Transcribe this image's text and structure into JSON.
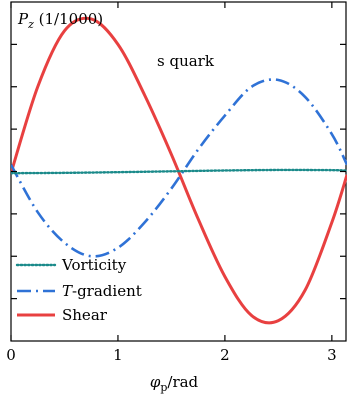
{
  "chart_data": {
    "type": "line",
    "ylabel_text": "P_z (1/1000)",
    "ylabel_parts": {
      "symbol": "P",
      "subscript": "z",
      "unit": " (1/1000)"
    },
    "xlabel_parts": {
      "symbol": "φ",
      "subscript": "p",
      "unit": "/rad"
    },
    "annotation": "s quark",
    "xlim": [
      0,
      3.1416
    ],
    "ylim": [
      -1.0,
      1.0
    ],
    "xticks": [
      0,
      1,
      2,
      3
    ],
    "xtick_labels": [
      "0",
      "1",
      "2",
      "3"
    ],
    "yticks": [
      -0.75,
      -0.5,
      -0.25,
      0,
      0.25,
      0.5,
      0.75
    ],
    "grid": false,
    "legend_position": "bottom-left",
    "series": [
      {
        "name": "Vorticity",
        "color": "#1a8a8a",
        "style": "dotted",
        "formula": "vorticity",
        "x": [
          0,
          0.5,
          1.0,
          1.5,
          2.0,
          2.5,
          3.0,
          3.1416
        ],
        "y": [
          -0.01,
          -0.008,
          -0.004,
          0.001,
          0.006,
          0.009,
          0.008,
          0.005
        ]
      },
      {
        "name": "T-gradient",
        "name_parts": {
          "italic": "T",
          "rest": "-gradient"
        },
        "color": "#2f72d6",
        "style": "dashdot",
        "x": [
          0,
          0.25,
          0.5,
          0.75,
          1.0,
          1.25,
          1.5,
          1.75,
          2.0,
          2.25,
          2.5,
          2.75,
          3.0,
          3.1416
        ],
        "y": [
          0.04,
          -0.24,
          -0.42,
          -0.5,
          -0.45,
          -0.3,
          -0.1,
          0.13,
          0.33,
          0.5,
          0.54,
          0.44,
          0.22,
          0.04
        ]
      },
      {
        "name": "Shear",
        "color": "#e84040",
        "style": "solid",
        "x": [
          0,
          0.25,
          0.5,
          0.75,
          1.0,
          1.25,
          1.5,
          1.75,
          2.0,
          2.25,
          2.5,
          2.75,
          3.0,
          3.1416
        ],
        "y": [
          -0.01,
          0.5,
          0.83,
          0.9,
          0.75,
          0.45,
          0.1,
          -0.28,
          -0.62,
          -0.85,
          -0.88,
          -0.7,
          -0.3,
          -0.02
        ]
      }
    ]
  }
}
